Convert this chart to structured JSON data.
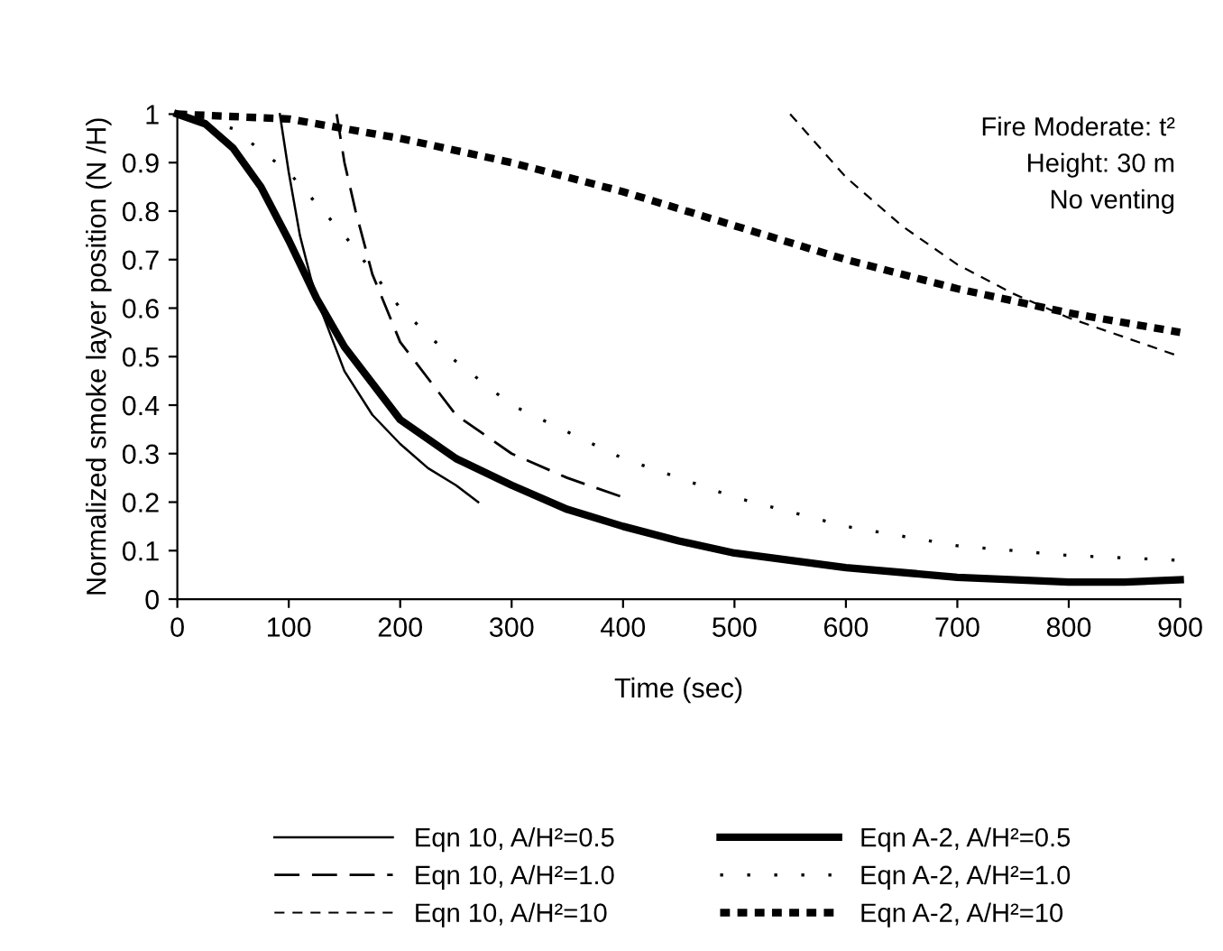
{
  "chart_data": {
    "type": "line",
    "xlabel": "Time (sec)",
    "ylabel": "Normalized smoke layer position (N /H)",
    "xlim": [
      0,
      900
    ],
    "xticks": [
      0,
      100,
      200,
      300,
      400,
      500,
      600,
      700,
      800,
      900
    ],
    "ylim": [
      0,
      1
    ],
    "yticks": [
      0,
      0.1,
      0.2,
      0.3,
      0.4,
      0.5,
      0.6,
      0.7,
      0.8,
      0.9,
      1
    ],
    "grid": false,
    "legend": "bottom",
    "marker": "none",
    "annotations": [
      "Fire Moderate: t²",
      "Height: 30 m",
      "No venting"
    ],
    "series": [
      {
        "name": "Eqn 10, A/H²=0.5",
        "color": "#000000",
        "line_style": "solid",
        "x": [
          92,
          100,
          110,
          120,
          130,
          150,
          175,
          200,
          225,
          250,
          270
        ],
        "values": [
          1.0,
          0.88,
          0.75,
          0.66,
          0.59,
          0.47,
          0.38,
          0.32,
          0.27,
          0.235,
          0.2
        ]
      },
      {
        "name": "Eqn 10, A/H²=1.0",
        "color": "#000000",
        "line_style": "dashed",
        "x": [
          143,
          150,
          160,
          175,
          200,
          250,
          300,
          350,
          400
        ],
        "values": [
          1.0,
          0.9,
          0.8,
          0.67,
          0.53,
          0.38,
          0.3,
          0.25,
          0.21
        ]
      },
      {
        "name": "Eqn 10, A/H²=10",
        "color": "#000000",
        "line_style": "dashed",
        "x": [
          550,
          600,
          650,
          700,
          750,
          800,
          850,
          900
        ],
        "values": [
          1.0,
          0.87,
          0.77,
          0.69,
          0.63,
          0.58,
          0.54,
          0.5
        ]
      },
      {
        "name": "Eqn A-2, A/H²=0.5",
        "color": "#000000",
        "line_style": "solid",
        "x": [
          0,
          25,
          50,
          75,
          100,
          125,
          150,
          200,
          250,
          300,
          350,
          400,
          450,
          500,
          600,
          700,
          800,
          850,
          900
        ],
        "values": [
          1.0,
          0.98,
          0.93,
          0.85,
          0.74,
          0.62,
          0.52,
          0.37,
          0.29,
          0.235,
          0.185,
          0.15,
          0.12,
          0.095,
          0.065,
          0.045,
          0.035,
          0.035,
          0.04
        ]
      },
      {
        "name": "Eqn A-2, A/H²=1.0",
        "color": "#000000",
        "line_style": "dotted",
        "x": [
          0,
          50,
          100,
          150,
          200,
          250,
          300,
          400,
          500,
          600,
          700,
          800,
          900
        ],
        "values": [
          1.0,
          0.97,
          0.88,
          0.75,
          0.6,
          0.49,
          0.4,
          0.29,
          0.21,
          0.15,
          0.11,
          0.09,
          0.08
        ]
      },
      {
        "name": "Eqn A-2, A/H²=10",
        "color": "#000000",
        "line_style": "dashed",
        "x": [
          0,
          100,
          200,
          300,
          400,
          500,
          600,
          700,
          800,
          900
        ],
        "values": [
          1.0,
          0.99,
          0.95,
          0.9,
          0.84,
          0.77,
          0.7,
          0.64,
          0.59,
          0.55
        ]
      }
    ]
  }
}
